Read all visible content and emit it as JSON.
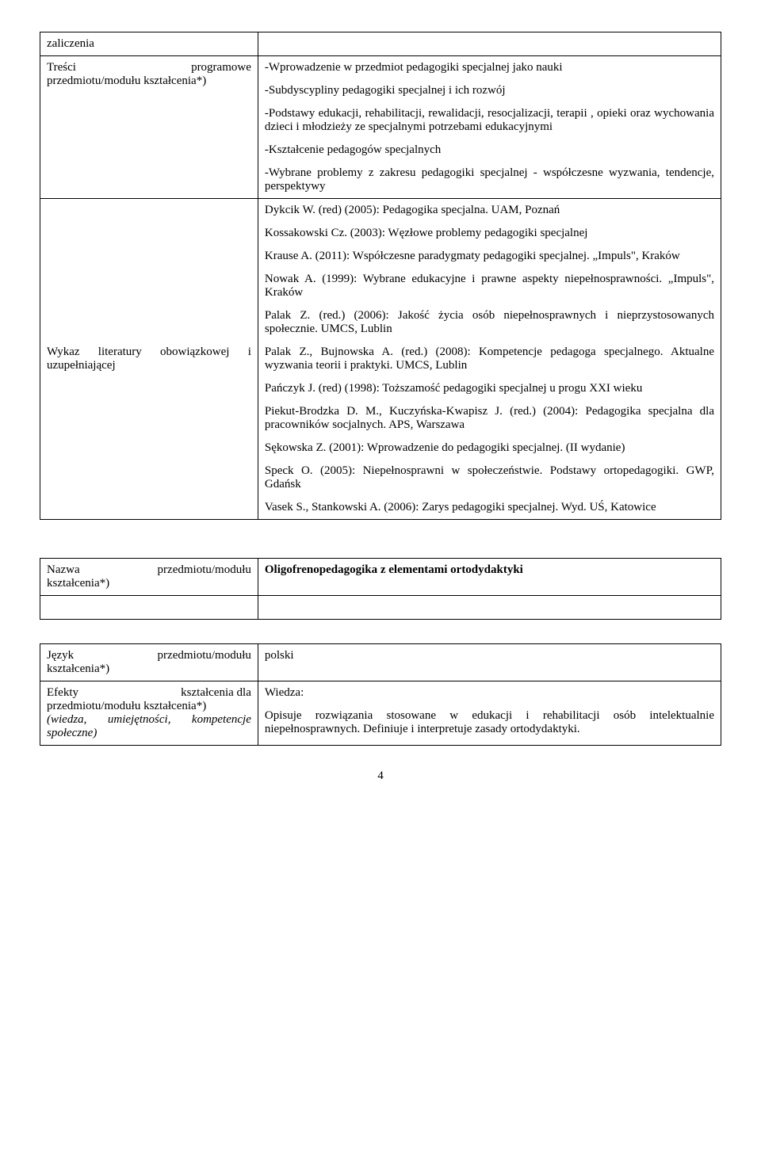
{
  "table1": {
    "rows": [
      {
        "left_pre": "zaliczenia",
        "left_justified": null,
        "right_paras": []
      },
      {
        "left_pre": null,
        "left_justified": [
          "Treści",
          "programowe"
        ],
        "left_post": "przedmiotu/modułu kształcenia*)",
        "right_paras": [
          "-Wprowadzenie w przedmiot pedagogiki specjalnej jako nauki",
          "-Subdyscypliny pedagogiki specjalnej i ich rozwój",
          "-Podstawy edukacji, rehabilitacji, rewalidacji, resocjalizacji, terapii , opieki oraz wychowania dzieci i młodzieży ze specjalnymi potrzebami edukacyjnymi",
          "-Kształcenie pedagogów specjalnych",
          "-Wybrane problemy z zakresu pedagogiki specjalnej - współczesne wyzwania, tendencje, perspektywy"
        ]
      },
      {
        "left_pre": "Wykaz literatury obowiązkowej i uzupełniającej",
        "left_justified": null,
        "right_paras": [
          "Dykcik W. (red) (2005): Pedagogika specjalna. UAM, Poznań",
          "Kossakowski Cz. (2003): Węzłowe problemy pedagogiki specjalnej",
          "Krause A. (2011): Współczesne paradygmaty pedagogiki specjalnej. „Impuls\", Kraków",
          "Nowak A. (1999): Wybrane edukacyjne i prawne aspekty niepełnosprawności. „Impuls\", Kraków",
          "Palak Z. (red.) (2006): Jakość życia osób niepełnosprawnych i nieprzystosowanych społecznie. UMCS, Lublin",
          "Palak Z., Bujnowska A. (red.) (2008): Kompetencje pedagoga specjalnego. Aktualne wyzwania teorii i praktyki. UMCS, Lublin",
          "Pańczyk J. (red) (1998): Toższamość pedagogiki specjalnej u progu XXI wieku",
          "Piekut-Brodzka D. M., Kuczyńska-Kwapisz J. (red.) (2004): Pedagogika specjalna dla pracowników socjalnych. APS, Warszawa",
          "Sękowska Z. (2001): Wprowadzenie do pedagogiki specjalnej. (II wydanie)",
          "Speck O. (2005): Niepełnosprawni w społeczeństwie. Podstawy ortopedagogiki. GWP, Gdańsk",
          "Vasek S., Stankowski A. (2006): Zarys pedagogiki specjalnej. Wyd. UŚ, Katowice"
        ]
      }
    ]
  },
  "table2": {
    "left_justified": [
      "Nazwa",
      "przedmiotu/modułu"
    ],
    "left_post": "kształcenia*)",
    "right": "Oligofrenopedagogika z elementami ortodydaktyki"
  },
  "table3": {
    "rows": [
      {
        "left_justified": [
          "Język",
          "przedmiotu/modułu"
        ],
        "left_post": "kształcenia*)",
        "right_paras": [
          "polski"
        ]
      },
      {
        "left_justified": [
          "Efekty",
          "kształcenia        dla"
        ],
        "left_post": "przedmiotu/modułu kształcenia*)",
        "left_italic": "(wiedza, umiejętności, kompetencje społeczne)",
        "right_paras": [
          "Wiedza:",
          "Opisuje rozwiązania stosowane w edukacji i rehabilitacji osób intelektualnie niepełnosprawnych. Definiuje i interpretuje zasady ortodydaktyki."
        ]
      }
    ]
  },
  "page_number": "4"
}
